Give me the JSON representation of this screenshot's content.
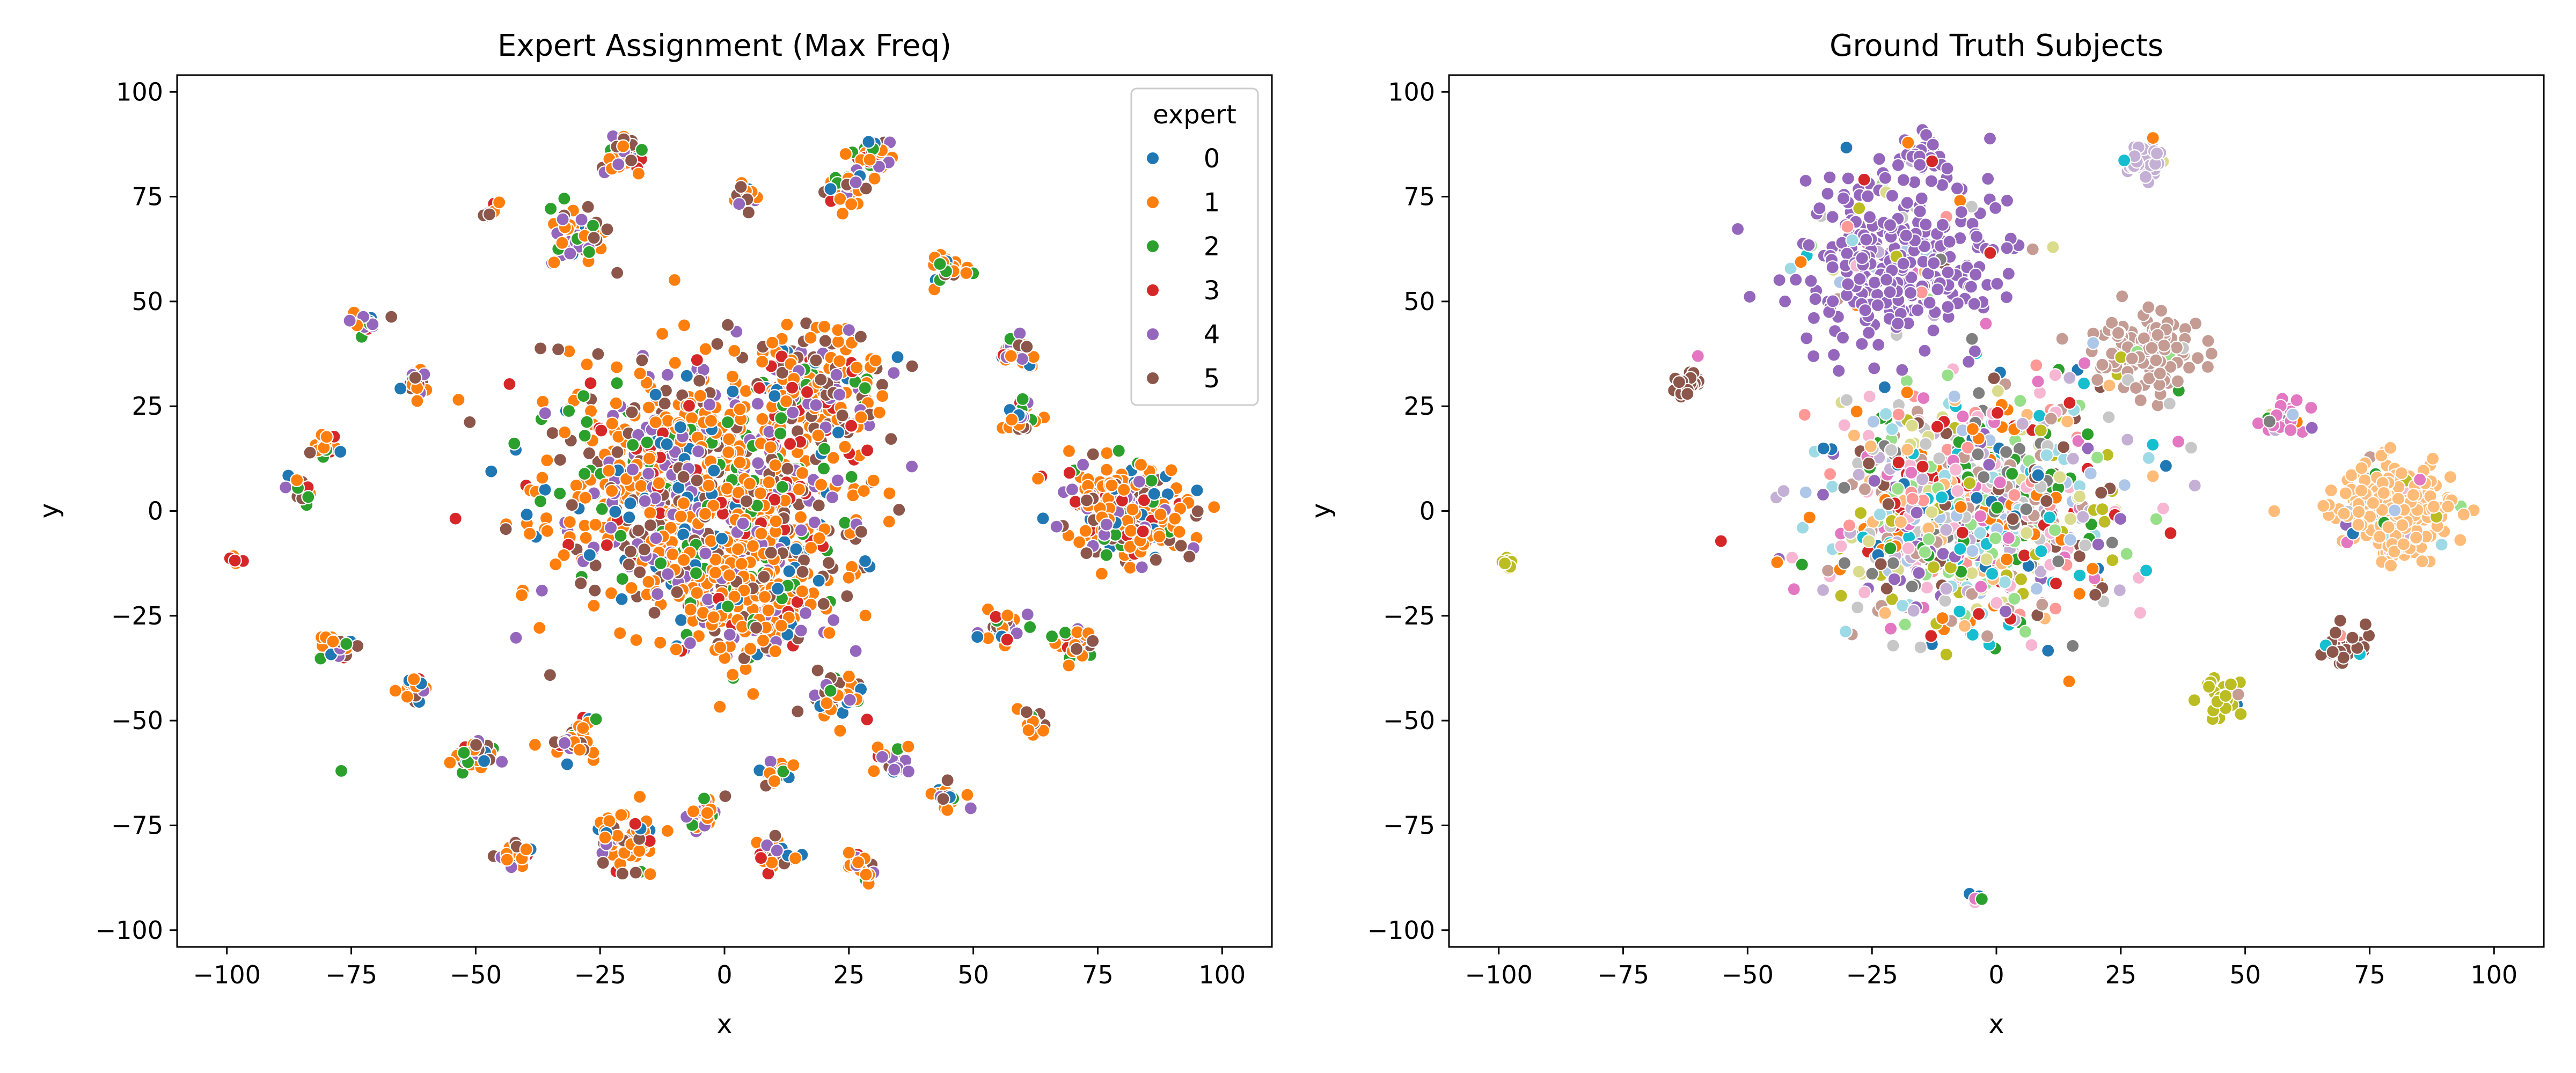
{
  "chart_data": [
    {
      "type": "scatter",
      "title": "Expert Assignment (Max Freq)",
      "xlabel": "x",
      "ylabel": "y",
      "xlim": [
        -110,
        110
      ],
      "ylim": [
        -104,
        104
      ],
      "xticks": [
        -100,
        -75,
        -50,
        -25,
        0,
        25,
        50,
        75,
        100
      ],
      "yticks": [
        -100,
        -75,
        -50,
        -25,
        0,
        25,
        50,
        75,
        100
      ],
      "xtick_labels": [
        "−100",
        "−75",
        "−50",
        "−25",
        "0",
        "25",
        "50",
        "75",
        "100"
      ],
      "ytick_labels": [
        "−100",
        "−75",
        "−50",
        "−25",
        "0",
        "25",
        "50",
        "75",
        "100"
      ],
      "grid": false,
      "legend": {
        "title": "expert",
        "placement": "top-right",
        "entries": [
          {
            "label": "0",
            "color": "#1f77b4"
          },
          {
            "label": "1",
            "color": "#ff7f0e"
          },
          {
            "label": "2",
            "color": "#2ca02c"
          },
          {
            "label": "3",
            "color": "#d62728"
          },
          {
            "label": "4",
            "color": "#9467bd"
          },
          {
            "label": "5",
            "color": "#8c564b"
          }
        ]
      },
      "clusters": [
        {
          "x": -5,
          "y": 5,
          "spread": 28,
          "n": 900
        },
        {
          "x": 5,
          "y": -20,
          "spread": 16,
          "n": 250
        },
        {
          "x": 80,
          "y": 0,
          "spread": 11,
          "n": 260
        },
        {
          "x": -20,
          "y": 85,
          "spread": 4,
          "n": 40
        },
        {
          "x": 30,
          "y": 85,
          "spread": 3,
          "n": 30
        },
        {
          "x": 25,
          "y": 78,
          "spread": 4,
          "n": 35
        },
        {
          "x": -30,
          "y": 65,
          "spread": 6,
          "n": 50
        },
        {
          "x": 5,
          "y": 75,
          "spread": 3,
          "n": 25
        },
        {
          "x": -47,
          "y": 72,
          "spread": 2,
          "n": 8
        },
        {
          "x": -72,
          "y": 44,
          "spread": 3,
          "n": 15
        },
        {
          "x": -62,
          "y": 30,
          "spread": 3,
          "n": 20
        },
        {
          "x": -80,
          "y": 15,
          "spread": 3,
          "n": 20
        },
        {
          "x": -85,
          "y": 5,
          "spread": 3,
          "n": 20
        },
        {
          "x": -98,
          "y": -12,
          "spread": 1.5,
          "n": 8
        },
        {
          "x": -78,
          "y": -32,
          "spread": 3,
          "n": 25
        },
        {
          "x": -62,
          "y": -42,
          "spread": 3,
          "n": 20
        },
        {
          "x": -50,
          "y": -58,
          "spread": 4,
          "n": 40
        },
        {
          "x": -42,
          "y": -82,
          "spread": 3,
          "n": 25
        },
        {
          "x": -20,
          "y": -78,
          "spread": 6,
          "n": 60
        },
        {
          "x": -5,
          "y": -72,
          "spread": 3,
          "n": 20
        },
        {
          "x": 10,
          "y": -82,
          "spread": 4,
          "n": 30
        },
        {
          "x": 28,
          "y": -85,
          "spread": 3,
          "n": 20
        },
        {
          "x": 45,
          "y": -68,
          "spread": 3,
          "n": 20
        },
        {
          "x": 62,
          "y": -50,
          "spread": 3,
          "n": 15
        },
        {
          "x": 70,
          "y": -32,
          "spread": 4,
          "n": 30
        },
        {
          "x": 55,
          "y": -28,
          "spread": 4,
          "n": 25
        },
        {
          "x": 45,
          "y": 58,
          "spread": 4,
          "n": 25
        },
        {
          "x": 58,
          "y": 38,
          "spread": 4,
          "n": 30
        },
        {
          "x": 60,
          "y": 22,
          "spread": 4,
          "n": 25
        },
        {
          "x": 10,
          "y": -62,
          "spread": 3,
          "n": 20
        },
        {
          "x": 35,
          "y": -60,
          "spread": 4,
          "n": 20
        },
        {
          "x": 22,
          "y": -45,
          "spread": 5,
          "n": 40
        },
        {
          "x": -30,
          "y": -55,
          "spread": 5,
          "n": 35
        },
        {
          "x": 20,
          "y": 30,
          "spread": 12,
          "n": 150
        }
      ],
      "scatter_points": [
        {
          "x": -77,
          "y": -62,
          "expert": 2
        }
      ]
    },
    {
      "type": "scatter",
      "title": "Ground Truth Subjects",
      "xlabel": "x",
      "ylabel": "y",
      "xlim": [
        -110,
        110
      ],
      "ylim": [
        -104,
        104
      ],
      "xticks": [
        -100,
        -75,
        -50,
        -25,
        0,
        25,
        50,
        75,
        100
      ],
      "yticks": [
        -100,
        -75,
        -50,
        -25,
        0,
        25,
        50,
        75,
        100
      ],
      "xtick_labels": [
        "−100",
        "−75",
        "−50",
        "−25",
        "0",
        "25",
        "50",
        "75",
        "100"
      ],
      "ytick_labels": [
        "−100",
        "−75",
        "−50",
        "−25",
        "0",
        "25",
        "50",
        "75",
        "100"
      ],
      "grid": false,
      "palette": [
        "#1f77b4",
        "#aec7e8",
        "#ff7f0e",
        "#ffbb78",
        "#2ca02c",
        "#98df8a",
        "#d62728",
        "#ff9896",
        "#9467bd",
        "#c5b0d5",
        "#8c564b",
        "#c49c94",
        "#e377c2",
        "#f7b6d2",
        "#7f7f7f",
        "#c7c7c7",
        "#bcbd22",
        "#dbdb8d",
        "#17becf",
        "#9edae5"
      ],
      "clusters": [
        {
          "x": -5,
          "y": 0,
          "spread": 26,
          "n": 900,
          "mixed": true
        },
        {
          "x": 80,
          "y": 0,
          "spread": 10,
          "n": 300,
          "color": "#ffbb78"
        },
        {
          "x": -20,
          "y": 60,
          "spread": 18,
          "n": 320,
          "color": "#9467bd"
        },
        {
          "x": -15,
          "y": 85,
          "spread": 4,
          "n": 40,
          "color": "#9467bd"
        },
        {
          "x": 30,
          "y": 38,
          "spread": 9,
          "n": 130,
          "color": "#c49c94"
        },
        {
          "x": 30,
          "y": 84,
          "spread": 4,
          "n": 40,
          "color": "#c5b0d5"
        },
        {
          "x": 58,
          "y": 22,
          "spread": 4,
          "n": 30,
          "color": "#e377c2"
        },
        {
          "x": 70,
          "y": -32,
          "spread": 4,
          "n": 30,
          "color": "#8c564b"
        },
        {
          "x": -98,
          "y": -12,
          "spread": 1.5,
          "n": 8,
          "color": "#bcbd22"
        },
        {
          "x": 45,
          "y": -45,
          "spread": 4,
          "n": 30,
          "color": "#bcbd22"
        },
        {
          "x": -62,
          "y": 30,
          "spread": 3,
          "n": 20,
          "color": "#8c564b"
        },
        {
          "x": -4,
          "y": -92,
          "spread": 1.5,
          "n": 6,
          "color": "#1f77b4"
        }
      ]
    }
  ]
}
